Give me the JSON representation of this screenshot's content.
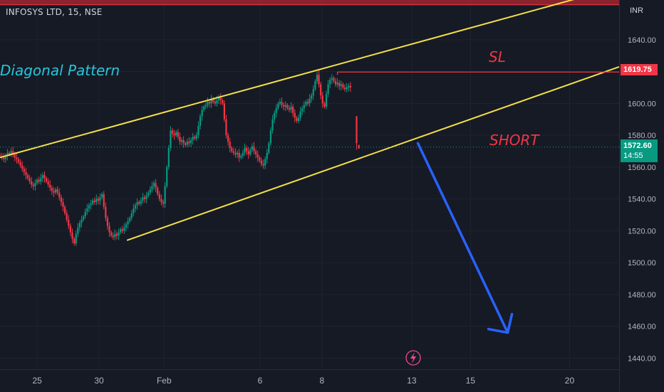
{
  "header": {
    "title": "INFOSYS LTD, 15, NSE"
  },
  "annotations": {
    "pattern_label": "Diagonal Pattern",
    "sl_label": "SL",
    "short_label": "SHORT"
  },
  "price_axis": {
    "currency": "INR",
    "sl_price": "1619.75",
    "last_price": "1572.60",
    "countdown": "14:55"
  },
  "colors": {
    "background": "#161a25",
    "up": "#089981",
    "down": "#f23645",
    "trendline": "#f5e048",
    "arrow": "#2962ff",
    "pattern_text": "#26c6da",
    "sl_zone": "#b22833"
  },
  "chart_data": {
    "type": "candlestick",
    "symbol": "INFOSYS LTD",
    "interval": "15",
    "exchange": "NSE",
    "ylim": [
      1433,
      1665
    ],
    "y_ticks": [
      "1640.00",
      "1620.00",
      "1600.00",
      "1580.00",
      "1560.00",
      "1540.00",
      "1520.00",
      "1500.00",
      "1480.00",
      "1460.00",
      "1440.00"
    ],
    "y_tick_values": [
      1640,
      1620,
      1600,
      1580,
      1560,
      1540,
      1520,
      1500,
      1480,
      1460,
      1440
    ],
    "x_ticks": [
      "25",
      "30",
      "Feb",
      "6",
      "8",
      "13",
      "15",
      "20"
    ],
    "x_tick_bars": [
      60,
      160,
      265,
      420,
      520,
      665,
      760,
      920
    ],
    "x_range_bars": [
      0,
      1000
    ],
    "close_series": [
      1567,
      1566,
      1565,
      1567,
      1569,
      1568,
      1570,
      1568,
      1566,
      1565,
      1563,
      1561,
      1559,
      1557,
      1555,
      1553,
      1551,
      1549,
      1548,
      1550,
      1552,
      1551,
      1553,
      1555,
      1553,
      1551,
      1549,
      1547,
      1545,
      1544,
      1546,
      1544,
      1541,
      1538,
      1535,
      1531,
      1527,
      1523,
      1519,
      1515,
      1512,
      1518,
      1522,
      1525,
      1527,
      1529,
      1532,
      1534,
      1536,
      1537,
      1539,
      1538,
      1540,
      1539,
      1541,
      1543,
      1535,
      1528,
      1523,
      1519,
      1517,
      1516,
      1518,
      1517,
      1519,
      1521,
      1520,
      1522,
      1524,
      1526,
      1528,
      1531,
      1534,
      1536,
      1538,
      1537,
      1539,
      1541,
      1540,
      1542,
      1544,
      1546,
      1548,
      1550,
      1547,
      1543,
      1540,
      1538,
      1537,
      1548,
      1560,
      1572,
      1583,
      1581,
      1580,
      1582,
      1579,
      1576,
      1577,
      1575,
      1574,
      1576,
      1575,
      1577,
      1579,
      1578,
      1580,
      1586,
      1592,
      1596,
      1598,
      1599,
      1601,
      1600,
      1603,
      1601,
      1600,
      1602,
      1604,
      1602,
      1600,
      1590,
      1580,
      1576,
      1572,
      1570,
      1569,
      1568,
      1569,
      1566,
      1567,
      1569,
      1572,
      1570,
      1568,
      1571,
      1573,
      1570,
      1568,
      1566,
      1564,
      1562,
      1561,
      1565,
      1569,
      1575,
      1583,
      1590,
      1594,
      1597,
      1600,
      1601,
      1599,
      1598,
      1599,
      1597,
      1596,
      1598,
      1594,
      1591,
      1589,
      1591,
      1595,
      1597,
      1599,
      1601,
      1600,
      1603,
      1605,
      1609,
      1614,
      1618,
      1612,
      1605,
      1600,
      1598,
      1606,
      1612,
      1615,
      1616,
      1614,
      1612,
      1613,
      1611,
      1612,
      1610,
      1609,
      1610,
      1611,
      1610
    ],
    "gap_close": [
      1592,
      1575,
      1573
    ],
    "trendlines": [
      {
        "name": "upper",
        "from": {
          "bar": 0,
          "price": 1566
        },
        "to": {
          "bar": 970,
          "price": 1670
        }
      },
      {
        "name": "lower",
        "from": {
          "bar": 205,
          "price": 1514
        },
        "to": {
          "bar": 1000,
          "price": 1623
        }
      }
    ],
    "sl_level": 1619.75,
    "last_price": 1572.6,
    "sl_zone": [
      1662,
      1675
    ],
    "arrow": {
      "from": {
        "bar": 675,
        "price": 1575
      },
      "to": {
        "bar": 820,
        "price": 1456
      }
    }
  }
}
